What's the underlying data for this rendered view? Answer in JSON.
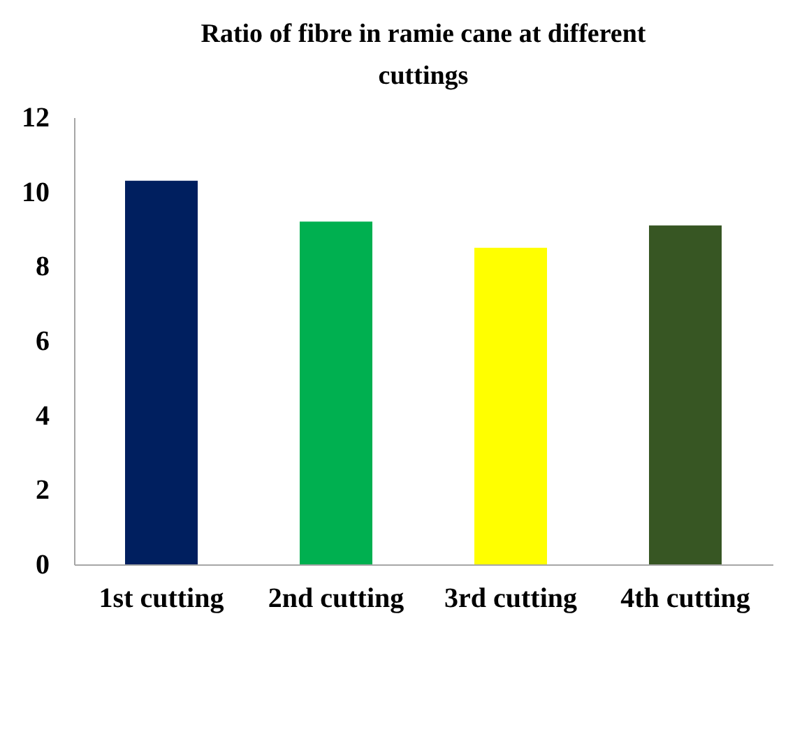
{
  "chart_data": {
    "type": "bar",
    "title": "Ratio of fibre in ramie cane at different cuttings",
    "categories": [
      "1st cutting",
      "2nd cutting",
      "3rd cutting",
      "4th cutting"
    ],
    "values": [
      10.3,
      9.2,
      8.5,
      9.1
    ],
    "colors": [
      "#001f5f",
      "#00b050",
      "#ffff00",
      "#375623"
    ],
    "ylim": [
      0,
      12
    ],
    "yticks": [
      0,
      2,
      4,
      6,
      8,
      10,
      12
    ],
    "grid": false
  }
}
